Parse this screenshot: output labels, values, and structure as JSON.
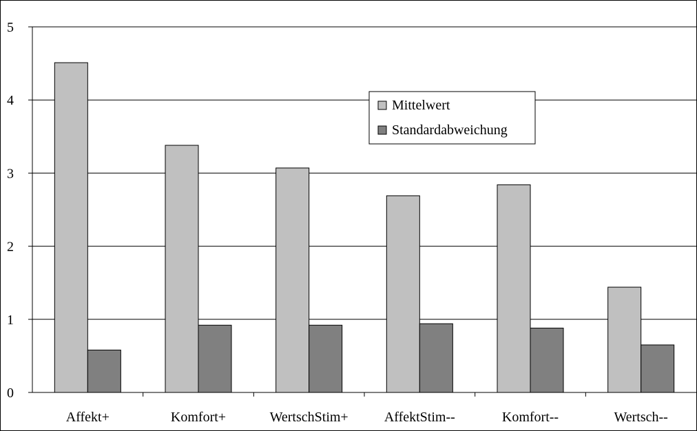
{
  "chart_data": {
    "type": "bar",
    "title": "",
    "xlabel": "",
    "ylabel": "",
    "categories": [
      "Affekt+",
      "Komfort+",
      "WertschStim+",
      "AffektStim--",
      "Komfort--",
      "Wertsch--"
    ],
    "series": [
      {
        "name": "Mittelwert",
        "color": "#c0c0c0",
        "values": [
          4.51,
          3.38,
          3.07,
          2.69,
          2.84,
          1.44
        ]
      },
      {
        "name": "Standardabweichung",
        "color": "#808080",
        "values": [
          0.58,
          0.92,
          0.92,
          0.94,
          0.88,
          0.65
        ]
      }
    ],
    "ylim": [
      0,
      5
    ],
    "yticks": [
      "0",
      "1",
      "2",
      "3",
      "4",
      "5"
    ],
    "grid": true,
    "legend_position": "top-right"
  }
}
